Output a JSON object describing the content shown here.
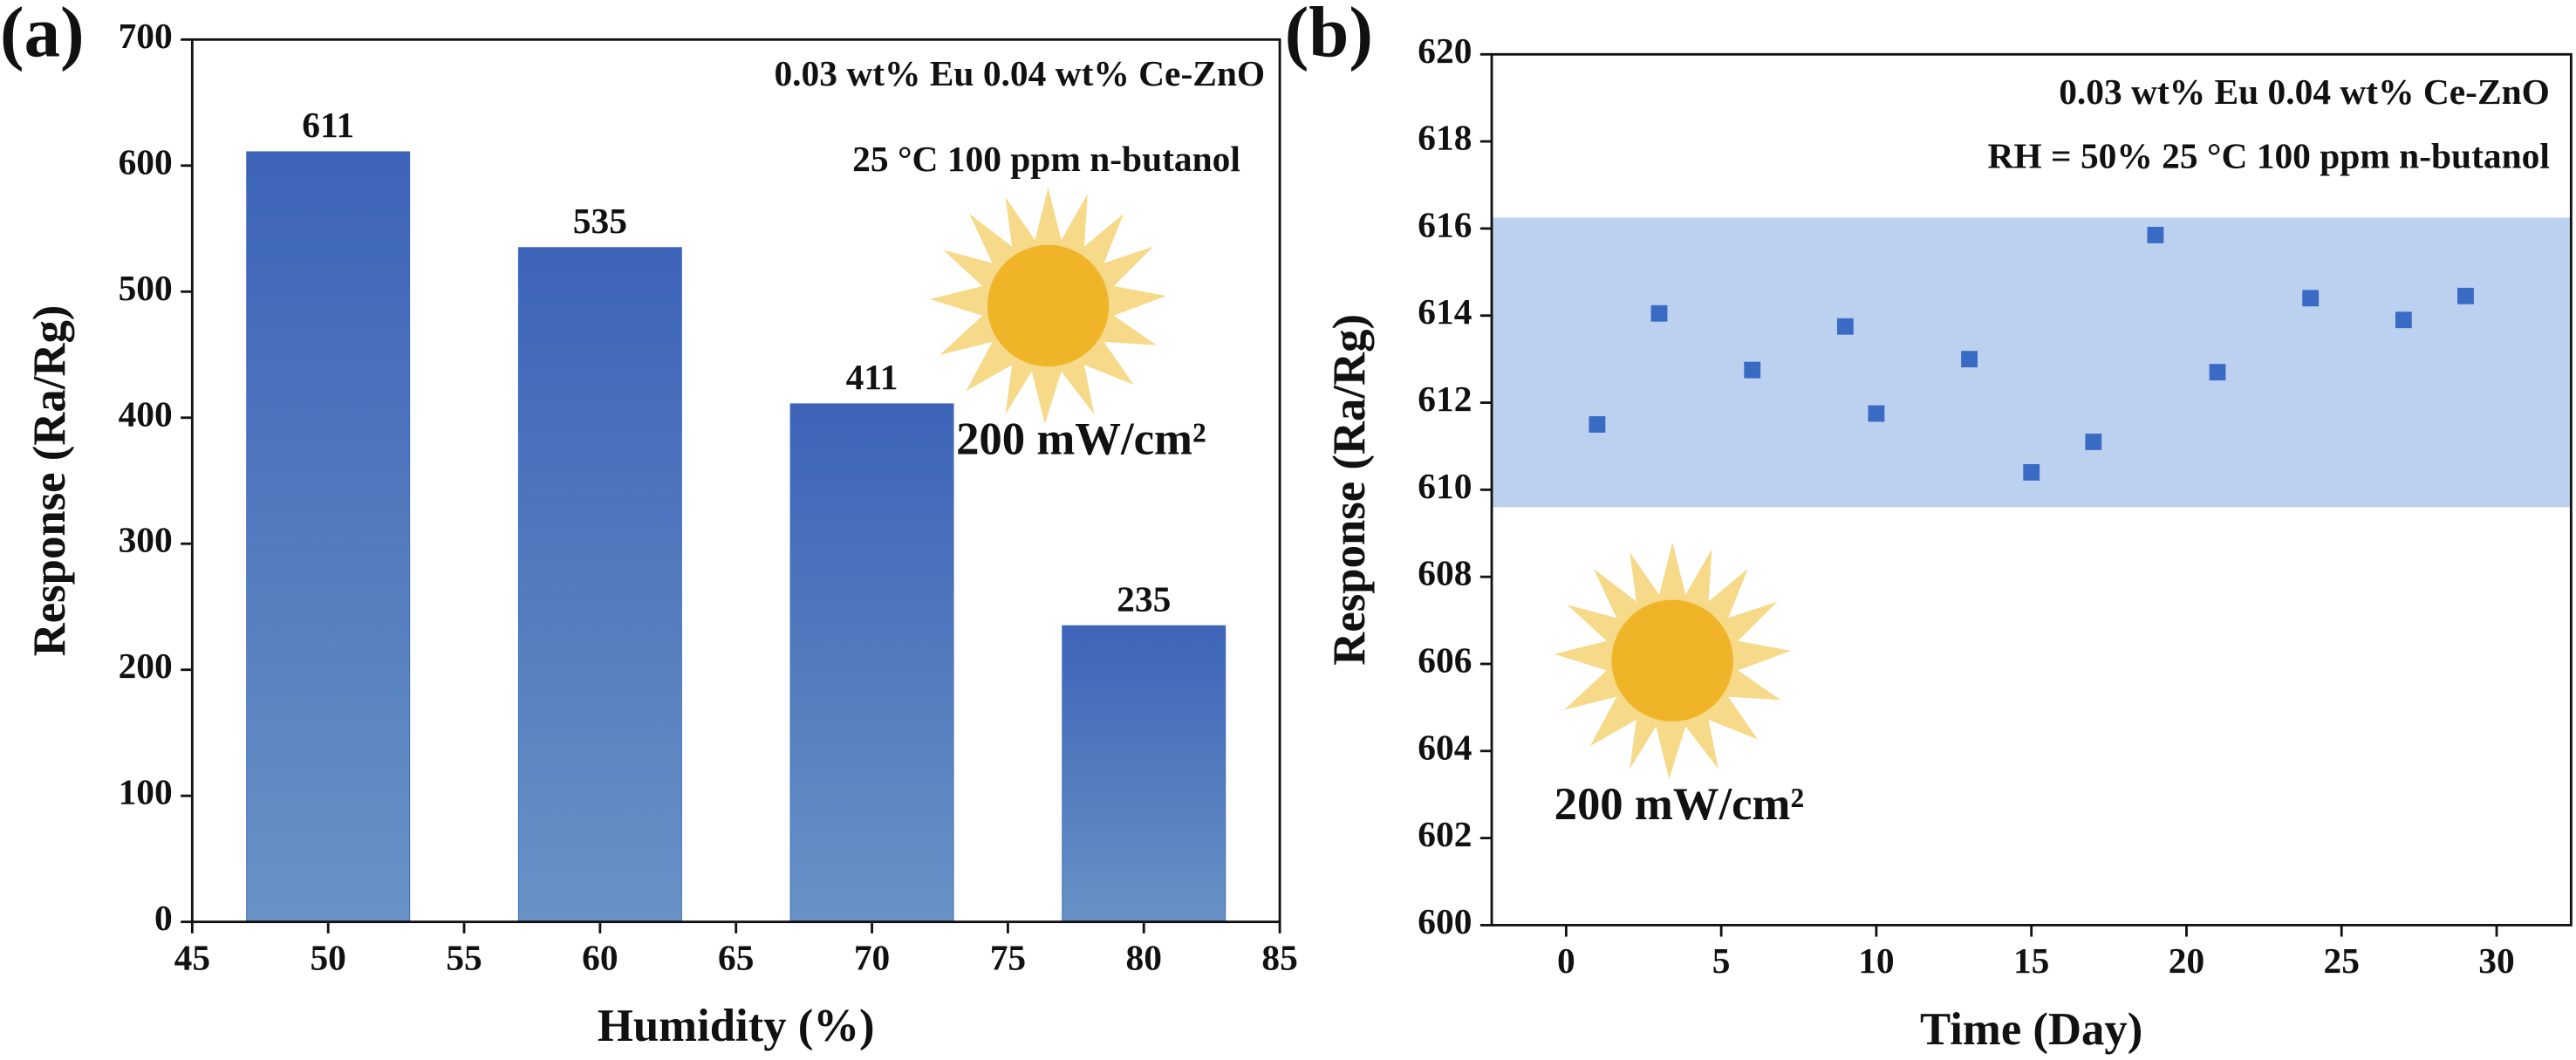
{
  "chart_data": [
    {
      "type": "bar",
      "panel_label": "(a)",
      "x_label": "Humidity (%)",
      "y_label": "Response (Ra/Rg)",
      "annotations": [
        "0.03 wt% Eu 0.04 wt% Ce-ZnO",
        "25 °C  100 ppm n-butanol",
        "200 mW/cm²"
      ],
      "x": [
        50,
        60,
        70,
        80
      ],
      "values": [
        611,
        535,
        411,
        235
      ],
      "color": "#3f68b9",
      "xlim": [
        45,
        85
      ],
      "xticks": [
        45,
        50,
        55,
        60,
        65,
        70,
        75,
        80,
        85
      ],
      "ylim": [
        0,
        700
      ],
      "yticks": [
        0,
        100,
        200,
        300,
        400,
        500,
        600,
        700
      ]
    },
    {
      "type": "scatter",
      "panel_label": "(b)",
      "x_label": "Time (Day)",
      "y_label": "Response (Ra/Rg)",
      "annotations": [
        "0.03 wt% Eu 0.04 wt% Ce-ZnO",
        "RH = 50% 25 °C  100 ppm n-butanol",
        "200 mW/cm²"
      ],
      "x": [
        1,
        3,
        6,
        9,
        10,
        13,
        15,
        17,
        19,
        21,
        24,
        27,
        29
      ],
      "values": [
        611.5,
        614.05,
        612.75,
        613.75,
        611.75,
        613.0,
        610.4,
        611.1,
        615.85,
        612.7,
        614.4,
        613.9,
        614.45
      ],
      "color": "#3a6bc4",
      "band": [
        609.6,
        616.25
      ],
      "band_color": "#bcd0ef",
      "xlim": [
        -2.4,
        32.4
      ],
      "xticks": [
        0,
        5,
        10,
        15,
        20,
        25,
        30
      ],
      "ylim": [
        600,
        620
      ],
      "yticks": [
        600,
        602,
        604,
        606,
        608,
        610,
        612,
        614,
        616,
        618,
        620
      ]
    }
  ]
}
